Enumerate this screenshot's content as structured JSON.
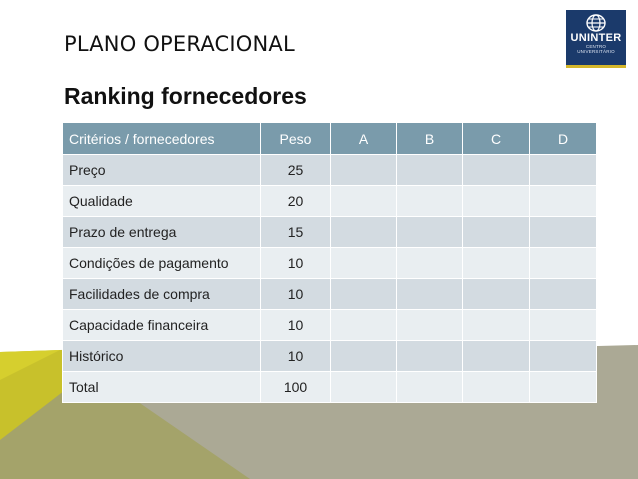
{
  "slide": {
    "title": "PLANO OPERACIONAL",
    "subtitle": "Ranking fornecedores"
  },
  "logo": {
    "name": "UNINTER",
    "tagline_line1": "CENTRO",
    "tagline_line2": "UNIVERSITÁRIO"
  },
  "table": {
    "headers": [
      "Critérios / fornecedores",
      "Peso",
      "A",
      "B",
      "C",
      "D"
    ],
    "rows": [
      {
        "criterio": "Preço",
        "peso": "25",
        "a": "",
        "b": "",
        "c": "",
        "d": ""
      },
      {
        "criterio": "Qualidade",
        "peso": "20",
        "a": "",
        "b": "",
        "c": "",
        "d": ""
      },
      {
        "criterio": "Prazo de entrega",
        "peso": "15",
        "a": "",
        "b": "",
        "c": "",
        "d": ""
      },
      {
        "criterio": "Condições de pagamento",
        "peso": "10",
        "a": "",
        "b": "",
        "c": "",
        "d": ""
      },
      {
        "criterio": "Facilidades de compra",
        "peso": "10",
        "a": "",
        "b": "",
        "c": "",
        "d": ""
      },
      {
        "criterio": "Capacidade financeira",
        "peso": "10",
        "a": "",
        "b": "",
        "c": "",
        "d": ""
      },
      {
        "criterio": "Histórico",
        "peso": "10",
        "a": "",
        "b": "",
        "c": "",
        "d": ""
      },
      {
        "criterio": "Total",
        "peso": "100",
        "a": "",
        "b": "",
        "c": "",
        "d": ""
      }
    ]
  },
  "colors": {
    "header_bg": "#7a9bab",
    "row_dark": "#d3dbe1",
    "row_light": "#e9eef1",
    "yellow_band": "#c8c12b",
    "olive_band": "#a4a36a",
    "gray_band": "#aba995",
    "logo_bg": "#1b3a6b"
  }
}
